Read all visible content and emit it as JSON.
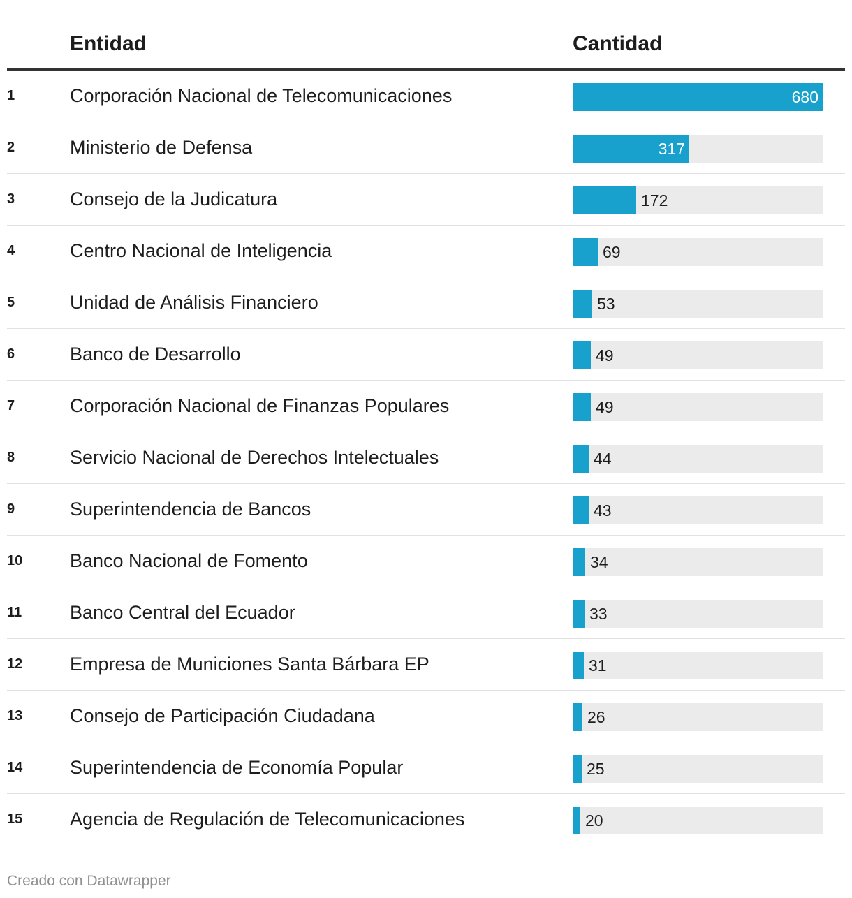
{
  "chart_data": {
    "type": "table",
    "columns": [
      "Entidad",
      "Cantidad"
    ],
    "max_value": 680,
    "bar_color": "#18a1cd",
    "track_color": "#ebebeb",
    "rows": [
      {
        "rank": "1",
        "entity": "Corporación Nacional de Telecomunicaciones",
        "value": 680
      },
      {
        "rank": "2",
        "entity": "Ministerio de Defensa",
        "value": 317
      },
      {
        "rank": "3",
        "entity": "Consejo de la Judicatura",
        "value": 172
      },
      {
        "rank": "4",
        "entity": "Centro Nacional de Inteligencia",
        "value": 69
      },
      {
        "rank": "5",
        "entity": "Unidad de Análisis Financiero",
        "value": 53
      },
      {
        "rank": "6",
        "entity": "Banco de Desarrollo",
        "value": 49
      },
      {
        "rank": "7",
        "entity": "Corporación Nacional de Finanzas Populares",
        "value": 49
      },
      {
        "rank": "8",
        "entity": "Servicio Nacional de Derechos Intelectuales",
        "value": 44
      },
      {
        "rank": "9",
        "entity": "Superintendencia de Bancos",
        "value": 43
      },
      {
        "rank": "10",
        "entity": "Banco Nacional de Fomento",
        "value": 34
      },
      {
        "rank": "11",
        "entity": "Banco Central del Ecuador",
        "value": 33
      },
      {
        "rank": "12",
        "entity": "Empresa de Municiones Santa Bárbara EP",
        "value": 31
      },
      {
        "rank": "13",
        "entity": "Consejo de Participación Ciudadana",
        "value": 26
      },
      {
        "rank": "14",
        "entity": "Superintendencia de Economía Popular",
        "value": 25
      },
      {
        "rank": "15",
        "entity": "Agencia de Regulación de Telecomunicaciones",
        "value": 20
      }
    ]
  },
  "footer": {
    "credit": "Creado con Datawrapper"
  }
}
